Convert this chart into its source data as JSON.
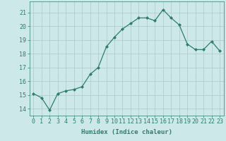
{
  "x": [
    0,
    1,
    2,
    3,
    4,
    5,
    6,
    7,
    8,
    9,
    10,
    11,
    12,
    13,
    14,
    15,
    16,
    17,
    18,
    19,
    20,
    21,
    22,
    23
  ],
  "y": [
    15.1,
    14.8,
    13.9,
    15.1,
    15.3,
    15.4,
    15.6,
    16.5,
    17.0,
    18.5,
    19.2,
    19.8,
    20.2,
    20.6,
    20.6,
    20.4,
    21.2,
    20.6,
    20.1,
    18.7,
    18.3,
    18.3,
    18.9,
    18.2
  ],
  "line_color": "#2e7d6e",
  "marker": "D",
  "marker_size": 2.0,
  "bg_color": "#cce8e8",
  "grid_color": "#adc8c8",
  "xlabel": "Humidex (Indice chaleur)",
  "ylim": [
    13.5,
    21.8
  ],
  "xlim": [
    -0.5,
    23.5
  ],
  "yticks": [
    14,
    15,
    16,
    17,
    18,
    19,
    20,
    21
  ],
  "xticks": [
    0,
    1,
    2,
    3,
    4,
    5,
    6,
    7,
    8,
    9,
    10,
    11,
    12,
    13,
    14,
    15,
    16,
    17,
    18,
    19,
    20,
    21,
    22,
    23
  ],
  "label_fontsize": 6.5,
  "tick_fontsize": 6.0
}
